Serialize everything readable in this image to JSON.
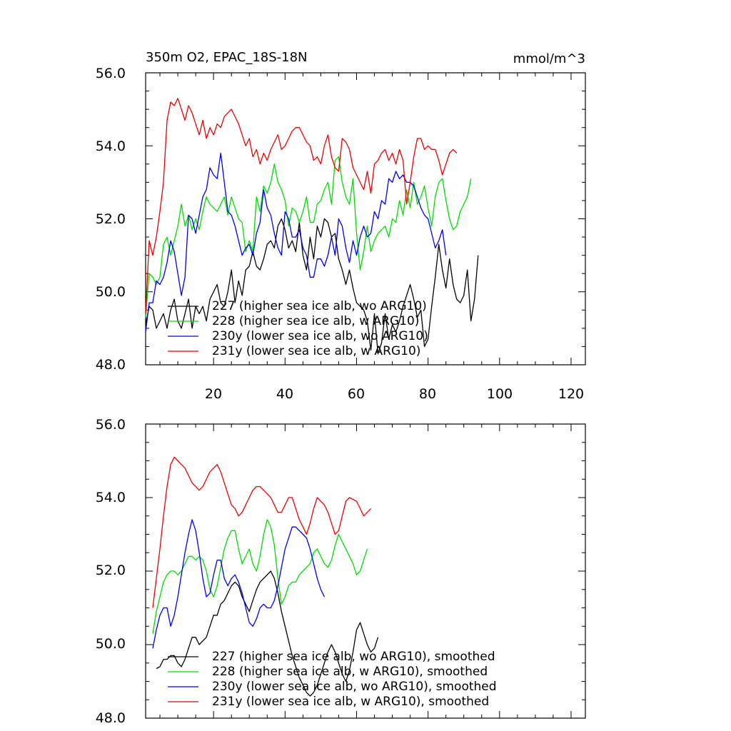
{
  "chart_data": [
    {
      "type": "line",
      "panel": "top",
      "title": "350m O2, EPAC_18S-18N",
      "units": "mmol/m^3",
      "xlim": [
        1,
        124
      ],
      "ylim": [
        48.0,
        56.0
      ],
      "y_ticks": [
        "48.0",
        "50.0",
        "52.0",
        "54.0",
        "56.0"
      ],
      "x_ticks": [
        "20",
        "40",
        "60",
        "80",
        "100",
        "120"
      ],
      "series": [
        {
          "name": "227 (higher sea ice alb, wo ARG10)",
          "color": "#000000",
          "x_start": 1,
          "values": [
            49.1,
            49.6,
            49.5,
            49.0,
            49.2,
            49.4,
            49.0,
            49.5,
            49.8,
            49.2,
            49.0,
            49.4,
            49.8,
            49.0,
            49.6,
            49.4,
            49.6,
            49.2,
            49.8,
            50.0,
            50.2,
            49.7,
            49.6,
            50.0,
            50.6,
            49.7,
            50.3,
            49.9,
            50.6,
            50.7,
            51.1,
            50.7,
            50.6,
            50.9,
            51.3,
            51.4,
            51.2,
            51.8,
            52.0,
            51.7,
            51.2,
            51.4,
            51.1,
            51.9,
            51.0,
            50.6,
            51.5,
            50.9,
            51.8,
            51.5,
            52.0,
            51.9,
            51.5,
            51.6,
            50.9,
            50.6,
            50.2,
            50.6,
            50.1,
            49.7,
            49.6,
            49.5,
            49.2,
            48.4,
            49.4,
            48.3,
            48.6,
            49.4,
            48.7,
            49.1,
            48.9,
            49.2,
            49.6,
            49.9,
            50.2,
            49.8,
            49.3,
            49.5,
            48.5,
            48.7,
            49.6,
            50.4,
            51.3,
            50.6,
            50.1,
            50.9,
            50.2,
            49.8,
            49.7,
            49.9,
            50.6,
            49.2,
            49.8,
            51.0
          ]
        },
        {
          "name": "228 (higher sea ice alb, w ARG10)",
          "color": "#00dd00",
          "x_start": 1,
          "values": [
            49.3,
            50.5,
            50.4,
            50.2,
            50.4,
            51.3,
            51.5,
            51.0,
            51.4,
            51.8,
            52.4,
            51.8,
            52.1,
            51.7,
            52.0,
            51.7,
            52.2,
            52.6,
            52.4,
            52.3,
            52.2,
            52.4,
            52.6,
            52.1,
            52.6,
            52.3,
            52.0,
            51.9,
            51.1,
            51.4,
            51.1,
            52.6,
            52.2,
            52.9,
            52.7,
            53.0,
            53.5,
            53.0,
            52.8,
            52.5,
            51.8,
            52.3,
            52.2,
            51.9,
            52.2,
            52.6,
            51.9,
            51.9,
            52.4,
            52.5,
            52.8,
            53.0,
            52.4,
            53.6,
            53.7,
            53.0,
            52.6,
            52.4,
            53.1,
            51.6,
            50.6,
            51.1,
            51.8,
            51.1,
            51.4,
            51.6,
            51.7,
            51.8,
            51.5,
            52.0,
            51.9,
            52.5,
            52.1,
            52.8,
            52.3,
            53.0,
            52.4,
            52.6,
            52.9,
            52.3,
            51.8,
            52.6,
            53.0,
            53.1,
            52.5,
            52.0,
            51.7,
            51.8,
            52.2,
            52.4,
            52.6,
            53.1
          ]
        },
        {
          "name": "230y (lower sea ice alb, wo ARG10)",
          "color": "#0000ee",
          "x_start": 1,
          "values": [
            48.9,
            49.7,
            49.7,
            50.3,
            50.2,
            50.4,
            50.8,
            51.4,
            51.1,
            50.5,
            49.9,
            50.4,
            52.1,
            52.0,
            51.6,
            52.1,
            52.6,
            52.8,
            53.4,
            53.2,
            53.1,
            53.8,
            53.0,
            52.2,
            52.1,
            51.8,
            51.4,
            51.0,
            51.2,
            51.3,
            51.0,
            51.6,
            51.9,
            52.8,
            52.3,
            52.1,
            51.6,
            51.2,
            51.0,
            52.2,
            52.0,
            51.5,
            51.5,
            51.7,
            51.2,
            51.0,
            50.4,
            50.4,
            50.9,
            50.9,
            50.7,
            51.0,
            51.5,
            51.0,
            52.0,
            51.8,
            51.2,
            50.8,
            51.4,
            51.0,
            51.5,
            51.8,
            51.5,
            51.6,
            52.2,
            52.0,
            52.5,
            52.4,
            53.1,
            53.0,
            53.3,
            53.1,
            53.2,
            53.0,
            53.0,
            52.9,
            52.6,
            52.3,
            52.1,
            52.0,
            51.6,
            51.2,
            51.4,
            51.7,
            51.0
          ]
        },
        {
          "name": "231y (lower sea ice alb, w ARG10)",
          "color": "#ee0000",
          "x_start": 1,
          "values": [
            49.4,
            51.4,
            51.0,
            51.5,
            52.2,
            53.0,
            54.7,
            55.2,
            55.1,
            55.3,
            55.0,
            54.7,
            55.1,
            54.9,
            54.6,
            54.3,
            54.7,
            54.2,
            54.5,
            54.3,
            54.6,
            54.5,
            54.8,
            54.9,
            55.0,
            54.8,
            54.6,
            54.3,
            54.0,
            54.2,
            53.7,
            53.9,
            53.5,
            53.8,
            53.6,
            53.9,
            54.1,
            54.3,
            53.9,
            54.0,
            54.2,
            54.4,
            54.5,
            54.5,
            54.3,
            54.1,
            54.0,
            53.6,
            53.7,
            53.5,
            54.0,
            54.3,
            53.7,
            53.4,
            53.3,
            54.2,
            54.1,
            53.9,
            53.4,
            53.2,
            53.0,
            52.8,
            53.3,
            52.7,
            53.5,
            53.6,
            53.8,
            53.9,
            53.6,
            53.8,
            53.5,
            53.9,
            53.6,
            52.4,
            53.0,
            53.7,
            54.2,
            54.2,
            53.9,
            54.0,
            53.9,
            53.9,
            53.6,
            53.2,
            53.5,
            53.8,
            53.9,
            53.8
          ]
        }
      ],
      "legend": [
        "227 (higher sea ice alb, wo ARG10)",
        "228 (higher sea ice alb, w ARG10)",
        "230y (lower sea ice alb, wo ARG10)",
        "231y (lower sea ice alb, w ARG10)"
      ],
      "legend_location": "bottom-left"
    },
    {
      "type": "line",
      "panel": "bottom",
      "xlim": [
        1,
        124
      ],
      "ylim": [
        48.0,
        56.0
      ],
      "y_ticks": [
        "48.0",
        "50.0",
        "52.0",
        "54.0",
        "56.0"
      ],
      "series": [
        {
          "name": "227 (higher sea ice alb, wo ARG10), smoothed",
          "color": "#000000",
          "x_start": 4,
          "values": [
            49.35,
            49.4,
            49.6,
            49.6,
            49.7,
            49.7,
            49.5,
            49.4,
            49.6,
            49.9,
            50.2,
            50.2,
            50.0,
            50.1,
            50.2,
            50.5,
            50.8,
            50.8,
            51.1,
            51.2,
            51.4,
            51.6,
            51.7,
            51.6,
            51.3,
            51.1,
            50.9,
            51.2,
            51.5,
            51.7,
            51.8,
            51.9,
            52.0,
            51.8,
            51.4,
            50.9,
            50.5,
            50.1,
            49.7,
            49.4,
            49.1,
            48.9,
            48.7,
            48.6,
            48.7,
            48.9,
            49.2,
            49.5,
            49.8,
            50.0,
            49.8,
            49.5,
            49.2,
            49.0,
            49.3,
            49.8,
            50.4,
            50.6,
            50.3,
            50.0,
            49.8,
            49.9,
            50.2
          ]
        },
        {
          "name": "228 (higher sea ice alb, w ARG10), smoothed",
          "color": "#00dd00",
          "x_start": 3,
          "values": [
            50.3,
            50.9,
            51.3,
            51.7,
            51.9,
            52.0,
            52.0,
            51.9,
            52.0,
            52.2,
            52.4,
            52.4,
            52.3,
            52.4,
            52.3,
            52.0,
            51.5,
            51.3,
            51.6,
            52.1,
            52.6,
            52.9,
            53.1,
            53.1,
            52.6,
            52.2,
            52.4,
            52.6,
            52.2,
            52.0,
            52.4,
            53.0,
            53.4,
            53.2,
            52.7,
            51.8,
            51.1,
            51.3,
            51.6,
            51.7,
            51.7,
            51.9,
            52.0,
            52.1,
            52.2,
            52.5,
            52.6,
            52.4,
            52.2,
            52.1,
            52.3,
            52.7,
            53.0,
            52.8,
            52.6,
            52.4,
            52.2,
            51.9,
            52.0,
            52.3,
            52.6
          ]
        },
        {
          "name": "230y (lower sea ice alb, wo ARG10), smoothed",
          "color": "#0000ee",
          "x_start": 3,
          "values": [
            49.9,
            50.4,
            50.8,
            51.0,
            51.0,
            50.5,
            50.8,
            51.3,
            51.9,
            52.5,
            53.0,
            53.4,
            53.1,
            52.5,
            51.8,
            51.3,
            51.4,
            51.9,
            52.3,
            52.3,
            51.8,
            51.6,
            51.8,
            51.9,
            51.7,
            51.4,
            51.0,
            50.6,
            50.5,
            50.7,
            51.0,
            51.1,
            51.0,
            51.0,
            51.2,
            51.6,
            52.1,
            52.6,
            52.9,
            53.2,
            53.2,
            53.1,
            53.0,
            52.9,
            52.6,
            52.2,
            51.8,
            51.5,
            51.3
          ]
        },
        {
          "name": "231y (lower sea ice alb, w ARG10), smoothed",
          "color": "#ee0000",
          "x_start": 3,
          "values": [
            51.0,
            51.8,
            52.6,
            53.5,
            54.3,
            54.9,
            55.1,
            55.0,
            54.9,
            54.8,
            54.6,
            54.4,
            54.3,
            54.2,
            54.3,
            54.5,
            54.7,
            54.8,
            54.9,
            54.7,
            54.4,
            54.1,
            53.8,
            53.7,
            53.5,
            53.6,
            53.8,
            54.0,
            54.2,
            54.3,
            54.3,
            54.2,
            54.1,
            54.0,
            53.8,
            53.6,
            53.6,
            53.8,
            54.0,
            54.0,
            53.7,
            53.4,
            53.2,
            53.0,
            53.3,
            53.7,
            54.0,
            53.9,
            53.8,
            53.6,
            53.3,
            53.0,
            53.1,
            53.5,
            53.9,
            54.0,
            53.95,
            53.9,
            53.7,
            53.5,
            53.6,
            53.7
          ]
        }
      ],
      "legend": [
        "227 (higher sea ice alb, wo ARG10), smoothed",
        "228 (higher sea ice alb, w ARG10), smoothed",
        "230y (lower sea ice alb, wo ARG10), smoothed",
        "231y (lower sea ice alb, w ARG10), smoothed"
      ],
      "legend_location": "bottom-left"
    }
  ]
}
